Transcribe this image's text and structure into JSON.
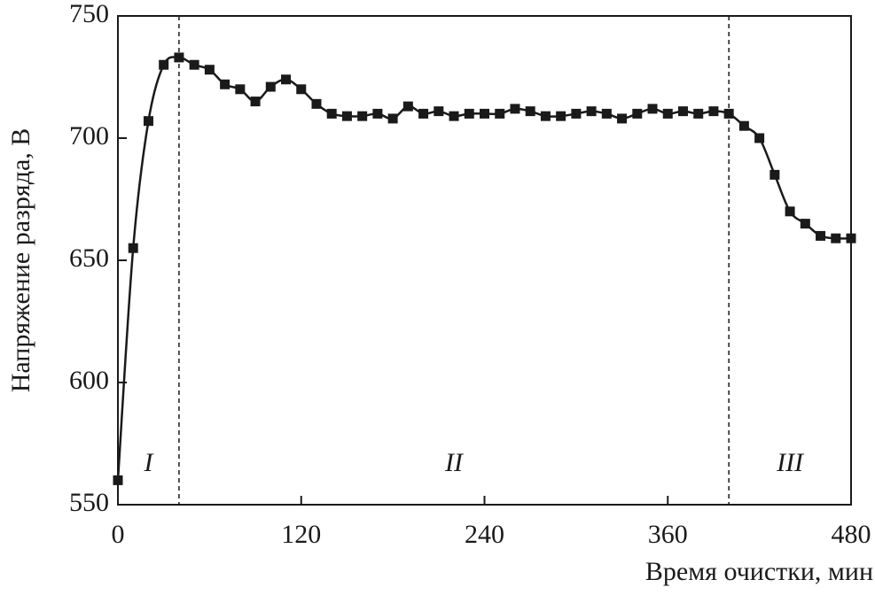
{
  "chart_data": {
    "type": "line",
    "xlabel": "Время очистки, мин",
    "ylabel": "Напряжение разряда, В",
    "x": [
      0,
      10,
      20,
      30,
      40,
      50,
      60,
      70,
      80,
      90,
      100,
      110,
      120,
      130,
      140,
      150,
      160,
      170,
      180,
      190,
      200,
      210,
      220,
      230,
      240,
      250,
      260,
      270,
      280,
      290,
      300,
      310,
      320,
      330,
      340,
      350,
      360,
      370,
      380,
      390,
      400,
      410,
      420,
      430,
      440,
      450,
      460,
      470,
      480
    ],
    "values": [
      560,
      655,
      707,
      730,
      733,
      730,
      728,
      722,
      720,
      715,
      721,
      724,
      720,
      714,
      710,
      709,
      709,
      710,
      708,
      713,
      710,
      711,
      709,
      710,
      710,
      710,
      712,
      711,
      709,
      709,
      710,
      711,
      710,
      708,
      710,
      712,
      710,
      711,
      710,
      711,
      710,
      705,
      700,
      685,
      670,
      665,
      660,
      659,
      659
    ],
    "color": "#1a1a1a",
    "xlim": [
      0,
      480
    ],
    "xticks": [
      0,
      120,
      240,
      360,
      480
    ],
    "ylim": [
      550,
      750
    ],
    "yticks": [
      550,
      600,
      650,
      700,
      750
    ],
    "vlines": [
      40,
      400
    ],
    "annotations": [
      "I",
      "II",
      "III"
    ]
  }
}
